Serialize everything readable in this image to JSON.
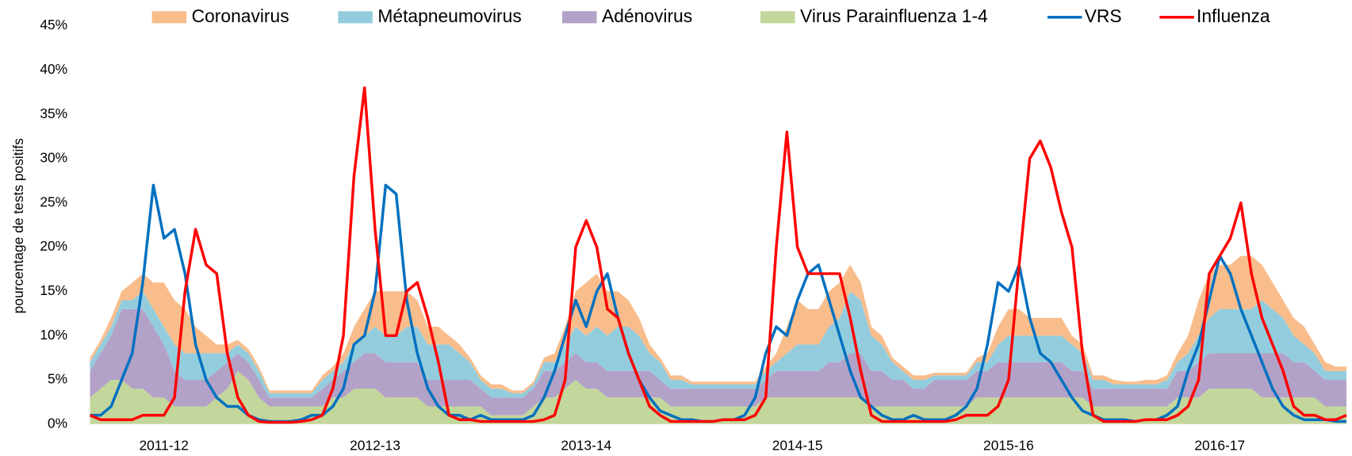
{
  "chart_data": {
    "type": "area",
    "y_label": "pourcentage de tests positifs",
    "ylim": [
      0,
      45
    ],
    "yticks": [
      {
        "value": 0,
        "label": "0%"
      },
      {
        "value": 5,
        "label": "5%"
      },
      {
        "value": 10,
        "label": "10%"
      },
      {
        "value": 15,
        "label": "15%"
      },
      {
        "value": 20,
        "label": "20%"
      },
      {
        "value": 25,
        "label": "25%"
      },
      {
        "value": 30,
        "label": "30%"
      },
      {
        "value": 35,
        "label": "35%"
      },
      {
        "value": 40,
        "label": "40%"
      },
      {
        "value": 45,
        "label": "45%"
      }
    ],
    "stacked": true,
    "legend": "top",
    "categories": [
      null,
      null,
      null,
      null,
      null,
      null,
      null,
      "2011-12",
      null,
      null,
      null,
      null,
      null,
      null,
      null,
      null,
      null,
      null,
      null,
      null,
      null,
      null,
      null,
      null,
      null,
      null,
      null,
      "2012-13",
      null,
      null,
      null,
      null,
      null,
      null,
      null,
      null,
      null,
      null,
      null,
      null,
      null,
      null,
      null,
      null,
      null,
      null,
      null,
      "2013-14",
      null,
      null,
      null,
      null,
      null,
      null,
      null,
      null,
      null,
      null,
      null,
      null,
      null,
      null,
      null,
      null,
      null,
      null,
      null,
      "2014-15",
      null,
      null,
      null,
      null,
      null,
      null,
      null,
      null,
      null,
      null,
      null,
      null,
      null,
      null,
      null,
      null,
      null,
      null,
      null,
      "2015-16",
      null,
      null,
      null,
      null,
      null,
      null,
      null,
      null,
      null,
      null,
      null,
      null,
      null,
      null,
      null,
      null,
      null,
      null,
      null,
      "2016-17",
      null,
      null,
      null,
      null,
      null,
      null,
      null,
      null,
      null,
      null,
      null,
      null
    ],
    "series": [
      {
        "name": "Coronavirus",
        "type": "area",
        "color": "#f9bd8c",
        "values": [
          0.5,
          0.5,
          1,
          1,
          2,
          2,
          3,
          5,
          5,
          5,
          3,
          2,
          1,
          1,
          0.5,
          0.5,
          0.5,
          0.3,
          0.3,
          0.3,
          0.3,
          0.3,
          0.5,
          0.5,
          1,
          2,
          3,
          4,
          5,
          5,
          4,
          3,
          2,
          2,
          1,
          1,
          0.5,
          0.5,
          0.5,
          0.5,
          0.3,
          0.3,
          0.3,
          0.5,
          1,
          2,
          4,
          6,
          6,
          5,
          4,
          3,
          2,
          1,
          0.5,
          0.5,
          0.5,
          0.3,
          0.3,
          0.3,
          0.3,
          0.3,
          0.3,
          0.3,
          0.5,
          1,
          3,
          5,
          4,
          4,
          4,
          4,
          3,
          2,
          1,
          1,
          0.5,
          0.5,
          0.5,
          0.5,
          0.3,
          0.3,
          0.3,
          0.3,
          0.5,
          1,
          2,
          3,
          3,
          2,
          2,
          2,
          2,
          1,
          1,
          0.5,
          0.5,
          0.5,
          0.3,
          0.3,
          0.5,
          0.5,
          0.5,
          1,
          2,
          4,
          5,
          5,
          5,
          6,
          6,
          4,
          3,
          2,
          2,
          2,
          1,
          1,
          0.5,
          0.5
        ]
      },
      {
        "name": "Métapneumovirus",
        "type": "area",
        "color": "#93cddd",
        "values": [
          1,
          1,
          1,
          1,
          1,
          2,
          2,
          2,
          3,
          3,
          3,
          3,
          2,
          1,
          1,
          1,
          1,
          0.5,
          0.5,
          0.5,
          0.5,
          0.5,
          1,
          1,
          1,
          2,
          2,
          3,
          3,
          3,
          4,
          4,
          4,
          4,
          4,
          3,
          2,
          1,
          1,
          1,
          0.5,
          0.5,
          0.5,
          1,
          1,
          2,
          3,
          3,
          4,
          4,
          5,
          5,
          4,
          2,
          2,
          1,
          1,
          0.5,
          0.5,
          0.5,
          0.5,
          0.5,
          0.5,
          0.5,
          1,
          1,
          2,
          3,
          3,
          3,
          4,
          5,
          7,
          6,
          4,
          3,
          2,
          1,
          1,
          1,
          0.5,
          0.5,
          0.5,
          0.5,
          1,
          1,
          2,
          3,
          3,
          3,
          3,
          3,
          3,
          3,
          2,
          1,
          1,
          0.5,
          0.5,
          0.5,
          0.5,
          0.5,
          1,
          1,
          2,
          3,
          4,
          5,
          5,
          5,
          5,
          6,
          5,
          4,
          3,
          2,
          2,
          1,
          1,
          1
        ]
      },
      {
        "name": "Adénovirus",
        "type": "area",
        "color": "#b3a2c7",
        "values": [
          3,
          4,
          5,
          8,
          9,
          9,
          8,
          6,
          4,
          3,
          3,
          3,
          3,
          3,
          2,
          2,
          2,
          1,
          1,
          1,
          1,
          1,
          2,
          2,
          3,
          3,
          4,
          4,
          4,
          4,
          4,
          4,
          3,
          3,
          3,
          3,
          3,
          2,
          2,
          2,
          2,
          2,
          2,
          3,
          3,
          3,
          3,
          3,
          3,
          3,
          3,
          3,
          3,
          3,
          2,
          2,
          2,
          2,
          2,
          2,
          2,
          2,
          2,
          2,
          2,
          3,
          3,
          3,
          3,
          3,
          4,
          4,
          5,
          5,
          4,
          4,
          3,
          3,
          2,
          2,
          3,
          3,
          3,
          3,
          3,
          3,
          4,
          4,
          4,
          4,
          4,
          4,
          4,
          3,
          3,
          2,
          2,
          2,
          2,
          2,
          2,
          2,
          2,
          3,
          3,
          4,
          4,
          4,
          4,
          4,
          4,
          5,
          5,
          5,
          4,
          4,
          3,
          3,
          3,
          3
        ]
      },
      {
        "name": "Virus Parainfluenza 1-4",
        "type": "area",
        "color": "#c3d69b",
        "values": [
          3,
          4,
          5,
          5,
          4,
          4,
          3,
          3,
          2,
          2,
          2,
          2,
          3,
          4,
          6,
          5,
          3,
          2,
          2,
          2,
          2,
          2,
          2,
          3,
          3,
          4,
          4,
          4,
          3,
          3,
          3,
          3,
          2,
          2,
          2,
          2,
          2,
          2,
          1,
          1,
          1,
          1,
          2,
          3,
          3,
          4,
          5,
          4,
          4,
          3,
          3,
          3,
          3,
          3,
          3,
          2,
          2,
          2,
          2,
          2,
          2,
          2,
          2,
          2,
          3,
          3,
          3,
          3,
          3,
          3,
          3,
          3,
          3,
          3,
          2,
          2,
          2,
          2,
          2,
          2,
          2,
          2,
          2,
          2,
          3,
          3,
          3,
          3,
          3,
          3,
          3,
          3,
          3,
          3,
          3,
          2,
          2,
          2,
          2,
          2,
          2,
          2,
          2,
          3,
          3,
          3,
          4,
          4,
          4,
          4,
          4,
          3,
          3,
          3,
          3,
          3,
          3,
          2,
          2,
          2
        ]
      },
      {
        "name": "VRS",
        "type": "line",
        "color": "#0070c0",
        "values": [
          1,
          1,
          2,
          5,
          8,
          16,
          27,
          21,
          22,
          17,
          9,
          5,
          3,
          2,
          2,
          1,
          0.5,
          0.3,
          0.3,
          0.3,
          0.5,
          1,
          1,
          2,
          4,
          9,
          10,
          15,
          27,
          26,
          14,
          8,
          4,
          2,
          1,
          1,
          0.5,
          1,
          0.5,
          0.5,
          0.5,
          0.5,
          1,
          3,
          6,
          10,
          14,
          11,
          15,
          17,
          12,
          8,
          5,
          3,
          1.5,
          1,
          0.5,
          0.5,
          0.3,
          0.3,
          0.5,
          0.5,
          1,
          3,
          8,
          11,
          10,
          14,
          17,
          18,
          14,
          10,
          6,
          3,
          2,
          1,
          0.5,
          0.5,
          1,
          0.5,
          0.5,
          0.5,
          1,
          2,
          4,
          9,
          16,
          15,
          18,
          12,
          8,
          7,
          5,
          3,
          1.5,
          1,
          0.5,
          0.5,
          0.5,
          0.3,
          0.5,
          0.5,
          1,
          2,
          6,
          9,
          14,
          19,
          17,
          13,
          10,
          7,
          4,
          2,
          1,
          0.5,
          0.5,
          0.5,
          0.3,
          0.3
        ]
      },
      {
        "name": "Influenza",
        "type": "line",
        "color": "#ff0000",
        "values": [
          1,
          0.5,
          0.5,
          0.5,
          0.5,
          1,
          1,
          1,
          3,
          15,
          22,
          18,
          17,
          8,
          3,
          1,
          0.3,
          0.2,
          0.2,
          0.2,
          0.3,
          0.5,
          1,
          4,
          10,
          28,
          38,
          22,
          10,
          10,
          15,
          16,
          12,
          7,
          1,
          0.5,
          0.5,
          0.3,
          0.3,
          0.3,
          0.3,
          0.3,
          0.3,
          0.5,
          1,
          5,
          20,
          23,
          20,
          13,
          12,
          8,
          5,
          2,
          1,
          0.3,
          0.3,
          0.3,
          0.3,
          0.3,
          0.5,
          0.5,
          0.5,
          1,
          3,
          20,
          33,
          20,
          17,
          17,
          17,
          17,
          12,
          6,
          1,
          0.3,
          0.3,
          0.3,
          0.3,
          0.3,
          0.3,
          0.3,
          0.5,
          1,
          1,
          1,
          2,
          5,
          18,
          30,
          32,
          29,
          24,
          20,
          8,
          1,
          0.3,
          0.3,
          0.3,
          0.3,
          0.5,
          0.5,
          0.5,
          1,
          2,
          5,
          17,
          19,
          21,
          25,
          17,
          12,
          9,
          6,
          2,
          1,
          1,
          0.5,
          0.5,
          1
        ]
      }
    ]
  }
}
